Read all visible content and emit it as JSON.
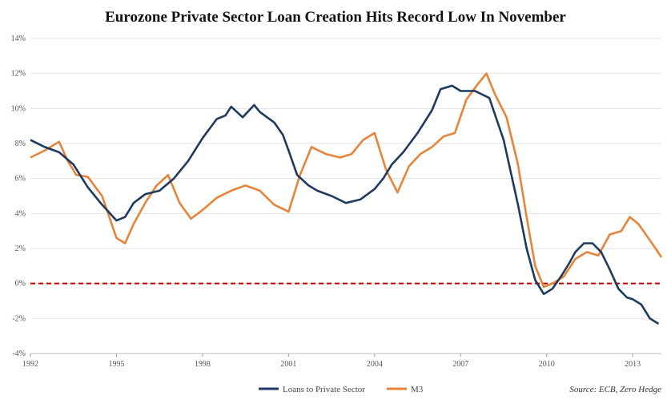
{
  "chart_data": {
    "type": "line",
    "title": "Eurozone Private Sector Loan Creation Hits Record Low In November",
    "source": "Source: ECB, Zero Hedge",
    "xlabel": "",
    "ylabel": "",
    "xlim": [
      1992,
      2014.0
    ],
    "ylim": [
      -4,
      14
    ],
    "y_ticks": [
      -4,
      -2,
      0,
      2,
      4,
      6,
      8,
      10,
      12,
      14
    ],
    "y_tick_labels": [
      "-4%",
      "-2%",
      "0%",
      "2%",
      "4%",
      "6%",
      "8%",
      "10%",
      "12%",
      "14%"
    ],
    "x_ticks": [
      1992,
      1995,
      1998,
      2001,
      2004,
      2007,
      2010,
      2013
    ],
    "x_tick_labels": [
      "1992",
      "1995",
      "1998",
      "2001",
      "2004",
      "2007",
      "2010",
      "2013"
    ],
    "grid": "horizontal",
    "legend": "bottom-center",
    "reference_line": {
      "y": 0,
      "style": "dashed",
      "color": "#c00000"
    },
    "series": [
      {
        "name": "Loans to Private Sector",
        "color": "#1f3a5f",
        "x": [
          1992.0,
          1992.5,
          1993.0,
          1993.5,
          1994.0,
          1994.5,
          1995.0,
          1995.3,
          1995.6,
          1996.0,
          1996.5,
          1997.0,
          1997.5,
          1998.0,
          1998.5,
          1998.8,
          1999.0,
          1999.4,
          1999.8,
          2000.0,
          2000.5,
          2000.8,
          2001.0,
          2001.3,
          2001.7,
          2002.0,
          2002.5,
          2003.0,
          2003.5,
          2004.0,
          2004.3,
          2004.6,
          2005.0,
          2005.5,
          2006.0,
          2006.3,
          2006.7,
          2007.0,
          2007.5,
          2008.0,
          2008.5,
          2009.0,
          2009.3,
          2009.6,
          2009.9,
          2010.2,
          2010.5,
          2010.8,
          2011.0,
          2011.3,
          2011.6,
          2011.9,
          2012.2,
          2012.5,
          2012.8,
          2013.0,
          2013.3,
          2013.6,
          2013.9
        ],
        "values": [
          8.2,
          7.8,
          7.5,
          6.8,
          5.5,
          4.5,
          3.6,
          3.8,
          4.6,
          5.1,
          5.3,
          6.0,
          7.0,
          8.3,
          9.4,
          9.6,
          10.1,
          9.5,
          10.2,
          9.8,
          9.2,
          8.5,
          7.6,
          6.2,
          5.6,
          5.3,
          5.0,
          4.6,
          4.8,
          5.4,
          6.0,
          6.8,
          7.5,
          8.6,
          9.9,
          11.1,
          11.3,
          11.0,
          11.0,
          10.6,
          8.2,
          4.5,
          2.0,
          0.2,
          -0.6,
          -0.3,
          0.4,
          1.2,
          1.8,
          2.3,
          2.3,
          1.8,
          0.8,
          -0.3,
          -0.8,
          -0.9,
          -1.2,
          -2.0,
          -2.3
        ]
      },
      {
        "name": "M3",
        "color": "#e8843a",
        "x": [
          1992.0,
          1992.5,
          1993.0,
          1993.3,
          1993.6,
          1994.0,
          1994.5,
          1995.0,
          1995.3,
          1995.6,
          1996.0,
          1996.4,
          1996.8,
          1997.2,
          1997.6,
          1998.0,
          1998.5,
          1999.0,
          1999.5,
          2000.0,
          2000.5,
          2001.0,
          2001.4,
          2001.8,
          2002.3,
          2002.8,
          2003.2,
          2003.6,
          2004.0,
          2004.4,
          2004.8,
          2005.2,
          2005.6,
          2006.0,
          2006.4,
          2006.8,
          2007.2,
          2007.6,
          2007.9,
          2008.2,
          2008.6,
          2009.0,
          2009.3,
          2009.6,
          2009.9,
          2010.2,
          2010.6,
          2011.0,
          2011.4,
          2011.8,
          2012.2,
          2012.6,
          2012.9,
          2013.2,
          2013.5,
          2013.8,
          2014.0
        ],
        "values": [
          7.2,
          7.6,
          8.1,
          7.0,
          6.2,
          6.1,
          5.0,
          2.6,
          2.3,
          3.4,
          4.6,
          5.6,
          6.2,
          4.6,
          3.7,
          4.2,
          4.9,
          5.3,
          5.6,
          5.3,
          4.5,
          4.1,
          6.2,
          7.8,
          7.4,
          7.2,
          7.4,
          8.2,
          8.6,
          6.5,
          5.2,
          6.7,
          7.4,
          7.8,
          8.4,
          8.6,
          10.5,
          11.4,
          12.0,
          10.8,
          9.5,
          6.8,
          3.8,
          1.0,
          -0.2,
          0.0,
          0.4,
          1.4,
          1.8,
          1.6,
          2.8,
          3.0,
          3.8,
          3.4,
          2.7,
          2.0,
          1.5
        ]
      }
    ]
  }
}
